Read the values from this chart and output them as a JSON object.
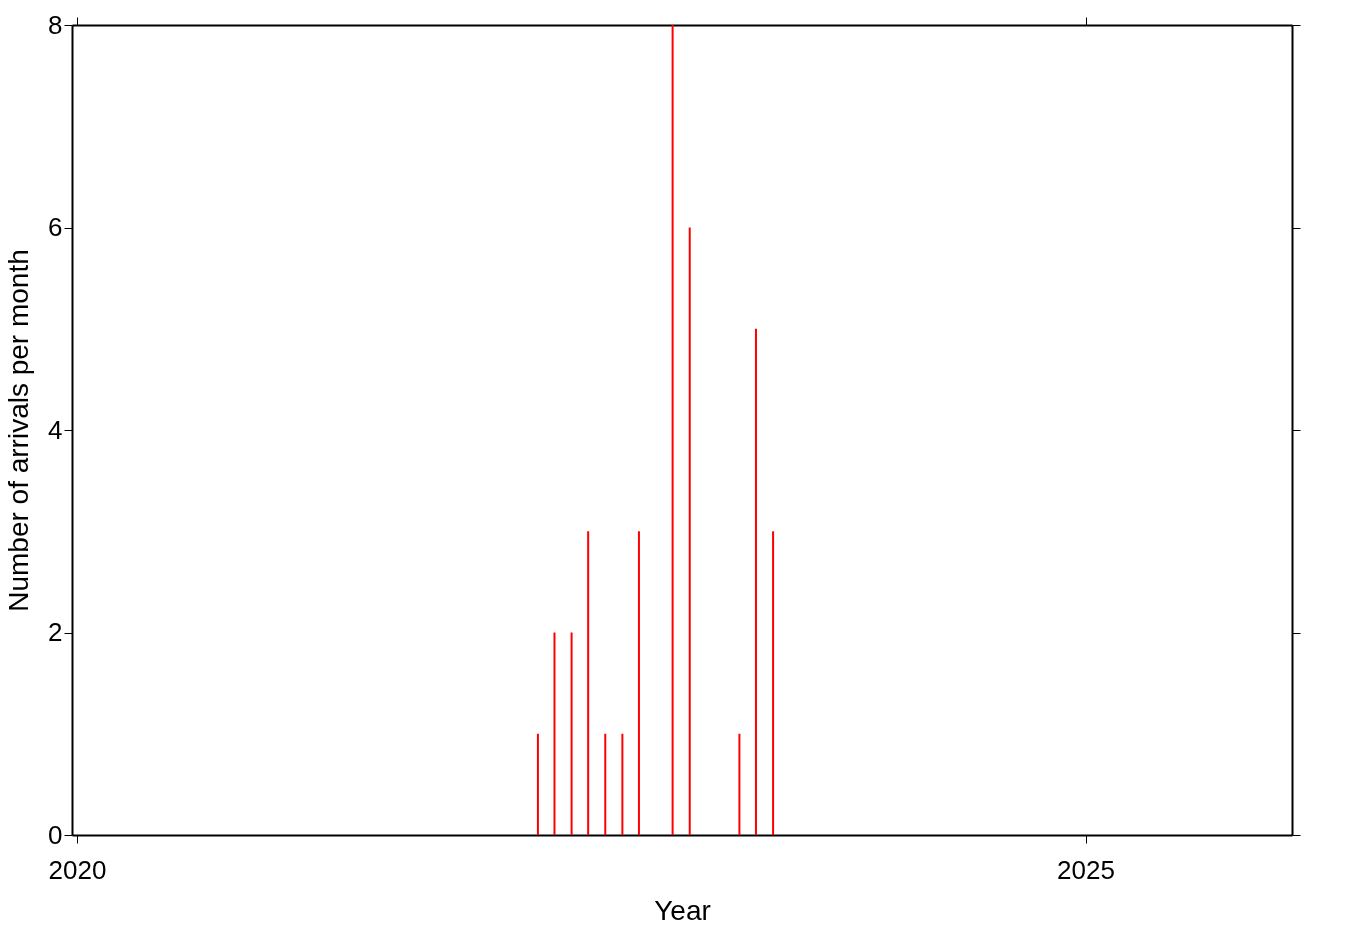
{
  "chart_data": {
    "type": "bar",
    "xlabel": "Year",
    "ylabel": "Number of arrivals per month",
    "x": [
      "2022-04-15",
      "2022-05-15",
      "2022-06-15",
      "2022-07-15",
      "2022-08-15",
      "2022-09-15",
      "2022-10-15",
      "2022-12-15",
      "2023-01-15",
      "2023-04-15",
      "2023-05-15",
      "2023-06-15"
    ],
    "values": [
      1,
      2,
      2,
      3,
      1,
      1,
      3,
      8,
      6,
      1,
      5,
      3
    ],
    "color": "#ff0000",
    "xlim": [
      "2020",
      "2026"
    ],
    "xticks": [
      "2020",
      "2025"
    ],
    "ylim": [
      0,
      8
    ],
    "yticks": [
      0,
      2,
      4,
      6,
      8
    ],
    "grid": false
  }
}
